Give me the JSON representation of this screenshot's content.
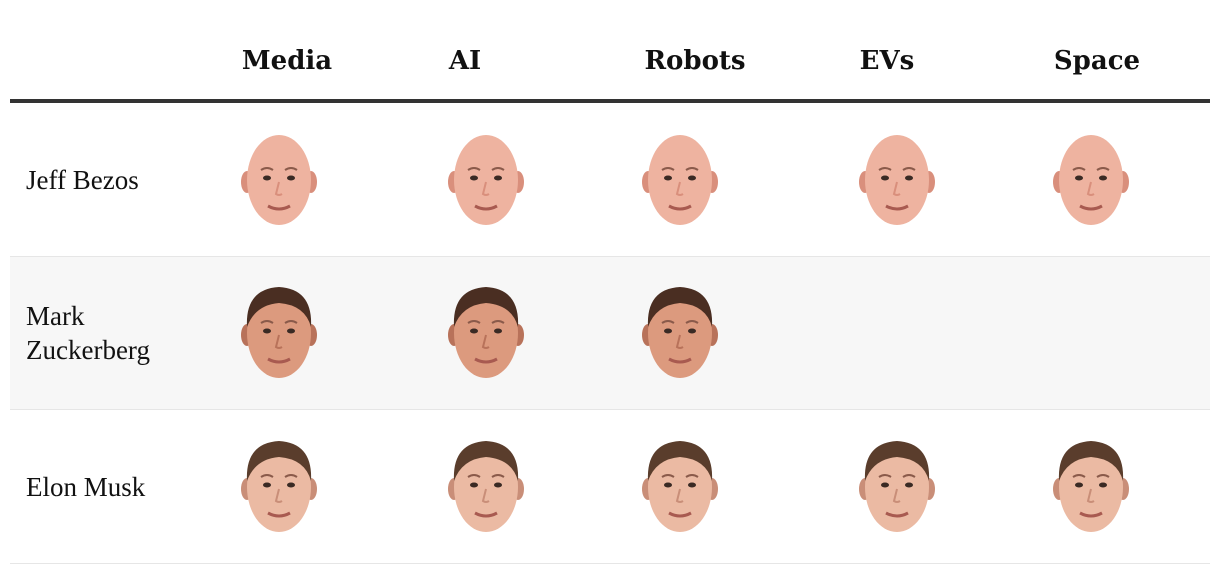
{
  "table": {
    "columns": [
      "Media",
      "AI",
      "Robots",
      "EVs",
      "Space"
    ],
    "rows": [
      {
        "name": "Jeff Bezos",
        "cells": [
          true,
          true,
          true,
          true,
          true
        ]
      },
      {
        "name": "Mark Zuckerberg",
        "cells": [
          true,
          true,
          true,
          false,
          false
        ]
      },
      {
        "name": "Elon Musk",
        "cells": [
          true,
          true,
          true,
          true,
          true
        ]
      }
    ]
  }
}
